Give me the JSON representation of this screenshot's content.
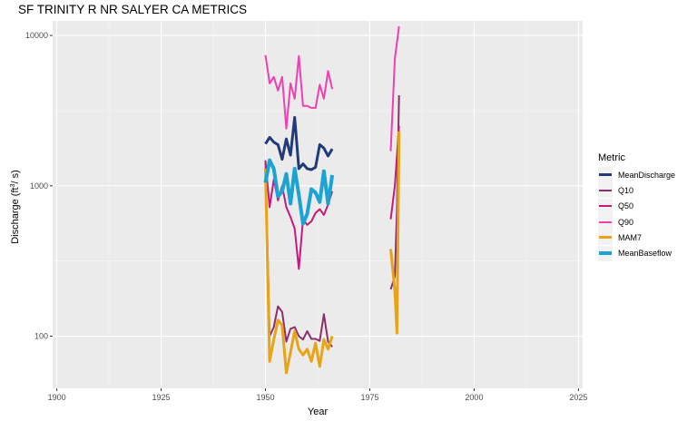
{
  "title": "SF TRINITY R NR SALYER CA  METRICS",
  "chart_data": {
    "type": "line",
    "title": "SF TRINITY R NR SALYER CA  METRICS",
    "xlabel": "Year",
    "ylabel_main": "Discharge (ft",
    "ylabel_sup": "3",
    "ylabel_end": "/ s)",
    "xlim": [
      1899,
      2026
    ],
    "ylim": [
      45,
      12500
    ],
    "yscale": "log",
    "x_ticks": [
      1900,
      1925,
      1950,
      1975,
      2000,
      2025
    ],
    "y_ticks": [
      100,
      1000,
      10000
    ],
    "grid": true,
    "legend_position": "right",
    "legend_title": "Metric",
    "series": [
      {
        "name": "MeanDischarge",
        "color": "#223a7a",
        "width": 3,
        "x": [
          1950,
          1951,
          1952,
          1953,
          1954,
          1955,
          1956,
          1957,
          1958,
          1959,
          1960,
          1961,
          1962,
          1963,
          1964,
          1965,
          1966
        ],
        "y": [
          1900,
          2100,
          1950,
          1880,
          1500,
          2050,
          1600,
          2850,
          1300,
          1400,
          1300,
          1280,
          1330,
          1880,
          1780,
          1580,
          1760
        ]
      },
      {
        "name": "Q10",
        "color": "#8e2e6a",
        "width": 2,
        "x": [
          1950,
          1951,
          1952,
          1953,
          1954,
          1955,
          1956,
          1957,
          1958,
          1959,
          1960,
          1961,
          1962,
          1963,
          1964,
          1965,
          1966,
          null,
          1980,
          1981,
          1981.5,
          1982
        ],
        "y": [
          1480,
          100,
          115,
          158,
          145,
          92,
          112,
          115,
          100,
          95,
          108,
          96,
          96,
          93,
          140,
          92,
          85,
          null,
          205,
          250,
          700,
          4000
        ]
      },
      {
        "name": "Q50",
        "color": "#c5197d",
        "width": 2,
        "x": [
          1950,
          1951,
          1952,
          1953,
          1954,
          1955,
          1956,
          1957,
          1958,
          1959,
          1960,
          1961,
          1962,
          1963,
          1964,
          1965,
          1966,
          null,
          1980,
          1981,
          1982
        ],
        "y": [
          1450,
          720,
          1100,
          800,
          1000,
          720,
          620,
          520,
          280,
          600,
          550,
          580,
          660,
          700,
          640,
          750,
          920,
          null,
          600,
          1000,
          2500
        ]
      },
      {
        "name": "Q90",
        "color": "#f03fb0",
        "width": 2,
        "x": [
          1950,
          1951,
          1952,
          1953,
          1954,
          1955,
          1956,
          1957,
          1958,
          1959,
          1960,
          1961,
          1962,
          1963,
          1964,
          1965,
          1966,
          null,
          1980,
          1981,
          1982
        ],
        "y": [
          7400,
          4800,
          5300,
          4300,
          5300,
          2400,
          4800,
          3800,
          7300,
          3400,
          3400,
          3300,
          3300,
          4700,
          3800,
          5800,
          4400,
          null,
          1700,
          7000,
          11500
        ]
      },
      {
        "name": "MAM7",
        "color": "#e8a317",
        "width": 3,
        "x": [
          1950,
          1951,
          1952,
          1953,
          1954,
          1955,
          1956,
          1957,
          1958,
          1959,
          1960,
          1961,
          1962,
          1963,
          1964,
          1965,
          1966,
          null,
          1980,
          1981,
          1981.5,
          1982
        ],
        "y": [
          1300,
          68,
          95,
          128,
          118,
          57,
          78,
          108,
          82,
          75,
          82,
          68,
          90,
          63,
          95,
          82,
          100,
          null,
          380,
          200,
          105,
          2300
        ]
      },
      {
        "name": "MeanBaseflow",
        "color": "#1aa3d3",
        "width": 4,
        "x": [
          1950,
          1951,
          1952,
          1953,
          1954,
          1955,
          1956,
          1957,
          1958,
          1959,
          1960,
          1961,
          1962,
          1963,
          1964,
          1965,
          1966
        ],
        "y": [
          1050,
          1480,
          1300,
          850,
          920,
          1200,
          760,
          1300,
          870,
          560,
          650,
          950,
          900,
          780,
          1250,
          760,
          1180
        ]
      }
    ]
  }
}
